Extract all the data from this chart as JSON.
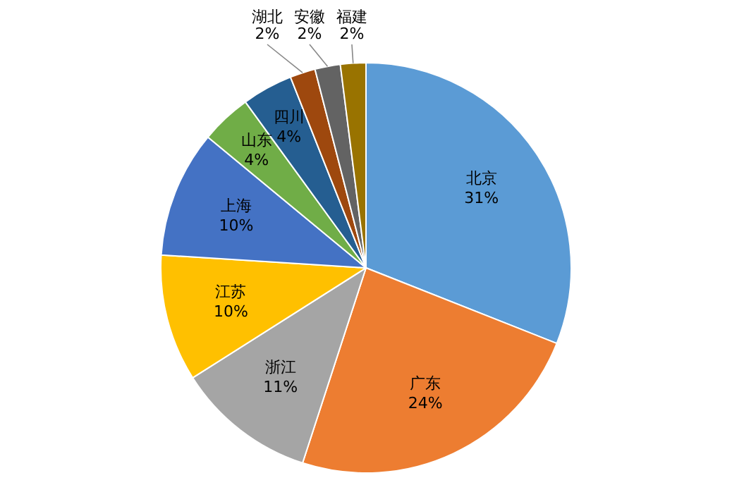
{
  "chart_data": {
    "type": "pie",
    "categories": [
      "北京",
      "广东",
      "浙江",
      "江苏",
      "上海",
      "山东",
      "四川",
      "湖北",
      "安徽",
      "福建"
    ],
    "values": [
      31,
      24,
      11,
      10,
      10,
      4,
      4,
      2,
      2,
      2
    ],
    "colors": [
      "#5b9bd5",
      "#ed7d31",
      "#a5a5a5",
      "#ffc000",
      "#4472c4",
      "#70ad47",
      "#255e91",
      "#9e480e",
      "#636363",
      "#997300"
    ],
    "value_labels": [
      "31%",
      "24%",
      "11%",
      "10%",
      "10%",
      "4%",
      "4%",
      "2%",
      "2%",
      "2%"
    ],
    "legend": false
  }
}
